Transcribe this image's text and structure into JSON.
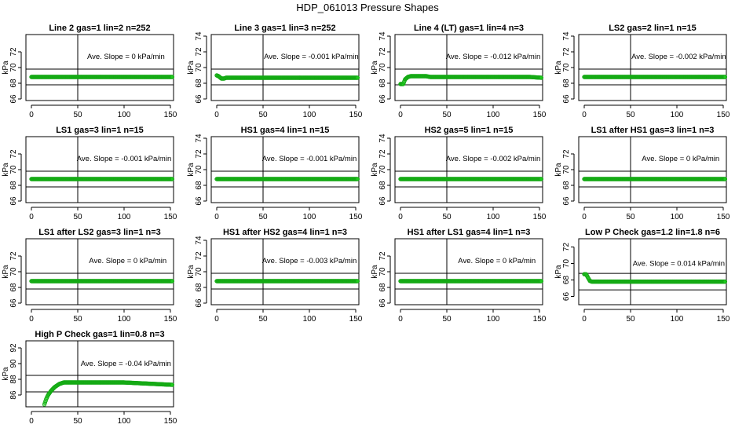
{
  "title": "HDP_061013  Pressure Shapes",
  "point_color": "#1fd01f",
  "point_stroke": "#14a814",
  "chart_data": [
    {
      "type": "scatter",
      "title": "Line 2 gas=1 lin=2 n=252",
      "ylabel": "kPa",
      "xlim": [
        0,
        152
      ],
      "ylim": [
        65.8,
        74.2
      ],
      "xticks": [
        0,
        50,
        100,
        150
      ],
      "yticks": [
        66,
        68,
        70,
        72
      ],
      "hlines": [
        69.8,
        67.8
      ],
      "vline": 50,
      "annotation": "Ave. Slope =  0  kPa/min",
      "ann_pos": [
        102,
        71.4
      ],
      "series": [
        [
          0,
          68.8
        ],
        [
          152,
          68.8
        ]
      ]
    },
    {
      "type": "scatter",
      "title": "Line 3 gas=1 lin=3 n=252",
      "ylabel": "kPa",
      "xlim": [
        0,
        152
      ],
      "ylim": [
        65.8,
        74.2
      ],
      "xticks": [
        0,
        50,
        100,
        150
      ],
      "yticks": [
        66,
        68,
        70,
        72,
        74
      ],
      "hlines": [
        69.8,
        67.8
      ],
      "vline": 50,
      "annotation": "Ave. Slope =  -0.001  kPa/min",
      "ann_pos": [
        102,
        71.4
      ],
      "series": [
        [
          0,
          69.0
        ],
        [
          2,
          68.9
        ],
        [
          5,
          68.6
        ],
        [
          8,
          68.6
        ],
        [
          10,
          68.7
        ],
        [
          152,
          68.7
        ]
      ]
    },
    {
      "type": "scatter",
      "title": "Line 4 (LT) gas=1 lin=4 n=3",
      "ylabel": "kPa",
      "xlim": [
        0,
        152
      ],
      "ylim": [
        65.8,
        74.2
      ],
      "xticks": [
        0,
        50,
        100,
        150
      ],
      "yticks": [
        66,
        68,
        70,
        72,
        74
      ],
      "hlines": [
        69.8,
        67.8
      ],
      "vline": 50,
      "annotation": "Ave. Slope =  -0.012  kPa/min",
      "ann_pos": [
        100,
        71.4
      ],
      "series": [
        [
          0,
          67.9
        ],
        [
          3,
          67.9
        ],
        [
          5,
          68.5
        ],
        [
          8,
          68.8
        ],
        [
          11,
          68.9
        ],
        [
          28,
          68.9
        ],
        [
          32,
          68.8
        ],
        [
          140,
          68.8
        ],
        [
          152,
          68.7
        ]
      ]
    },
    {
      "type": "scatter",
      "title": "LS2 gas=2 lin=1 n=15",
      "ylabel": "kPa",
      "xlim": [
        0,
        152
      ],
      "ylim": [
        65.8,
        74.2
      ],
      "xticks": [
        0,
        50,
        100,
        150
      ],
      "yticks": [
        66,
        68,
        70,
        72,
        74
      ],
      "hlines": [
        69.8,
        67.8
      ],
      "vline": 50,
      "annotation": "Ave. Slope =  -0.002  kPa/min",
      "ann_pos": [
        102,
        71.4
      ],
      "series": [
        [
          0,
          68.8
        ],
        [
          152,
          68.8
        ]
      ]
    },
    {
      "type": "scatter",
      "title": "LS1 gas=3 lin=1 n=15",
      "ylabel": "kPa",
      "xlim": [
        0,
        152
      ],
      "ylim": [
        65.8,
        74.2
      ],
      "xticks": [
        0,
        50,
        100,
        150
      ],
      "yticks": [
        66,
        68,
        70,
        72
      ],
      "hlines": [
        69.8,
        67.8
      ],
      "vline": 50,
      "annotation": "Ave. Slope =  -0.001  kPa/min",
      "ann_pos": [
        100,
        71.4
      ],
      "series": [
        [
          0,
          68.8
        ],
        [
          152,
          68.8
        ]
      ]
    },
    {
      "type": "scatter",
      "title": "HS1 gas=4 lin=1 n=15",
      "ylabel": "kPa",
      "xlim": [
        0,
        152
      ],
      "ylim": [
        65.8,
        74.2
      ],
      "xticks": [
        0,
        50,
        100,
        150
      ],
      "yticks": [
        66,
        68,
        70,
        72,
        74
      ],
      "hlines": [
        69.8,
        67.8
      ],
      "vline": 50,
      "annotation": "Ave. Slope =  -0.001  kPa/min",
      "ann_pos": [
        100,
        71.4
      ],
      "series": [
        [
          0,
          68.8
        ],
        [
          152,
          68.8
        ]
      ]
    },
    {
      "type": "scatter",
      "title": "HS2 gas=5 lin=1 n=15",
      "ylabel": "kPa",
      "xlim": [
        0,
        152
      ],
      "ylim": [
        65.8,
        74.2
      ],
      "xticks": [
        0,
        50,
        100,
        150
      ],
      "yticks": [
        66,
        68,
        70,
        72,
        74
      ],
      "hlines": [
        69.8,
        67.8
      ],
      "vline": 50,
      "annotation": "Ave. Slope =  -0.002  kPa/min",
      "ann_pos": [
        100,
        71.4
      ],
      "series": [
        [
          0,
          68.8
        ],
        [
          152,
          68.8
        ]
      ]
    },
    {
      "type": "scatter",
      "title": "LS1 after HS1 gas=3 lin=1 n=3",
      "ylabel": "kPa",
      "xlim": [
        0,
        152
      ],
      "ylim": [
        65.8,
        74.2
      ],
      "xticks": [
        0,
        50,
        100,
        150
      ],
      "yticks": [
        66,
        68,
        70,
        72
      ],
      "hlines": [
        69.8,
        67.8
      ],
      "vline": 50,
      "annotation": "Ave. Slope =  0  kPa/min",
      "ann_pos": [
        104,
        71.4
      ],
      "series": [
        [
          0,
          68.8
        ],
        [
          152,
          68.8
        ]
      ]
    },
    {
      "type": "scatter",
      "title": "LS1 after LS2 gas=3 lin=1 n=3",
      "ylabel": "kPa",
      "xlim": [
        0,
        152
      ],
      "ylim": [
        65.8,
        74.2
      ],
      "xticks": [
        0,
        50,
        100,
        150
      ],
      "yticks": [
        66,
        68,
        70,
        72
      ],
      "hlines": [
        69.8,
        67.8
      ],
      "vline": 50,
      "annotation": "Ave. Slope =  0  kPa/min",
      "ann_pos": [
        104,
        71.4
      ],
      "series": [
        [
          0,
          68.8
        ],
        [
          152,
          68.8
        ]
      ]
    },
    {
      "type": "scatter",
      "title": "HS1 after HS2 gas=4 lin=1 n=3",
      "ylabel": "kPa",
      "xlim": [
        0,
        152
      ],
      "ylim": [
        65.8,
        74.2
      ],
      "xticks": [
        0,
        50,
        100,
        150
      ],
      "yticks": [
        66,
        68,
        70,
        72,
        74
      ],
      "hlines": [
        69.8,
        67.8
      ],
      "vline": 50,
      "annotation": "Ave. Slope =  -0.003  kPa/min",
      "ann_pos": [
        100,
        71.4
      ],
      "series": [
        [
          0,
          68.8
        ],
        [
          152,
          68.8
        ]
      ]
    },
    {
      "type": "scatter",
      "title": "HS1 after LS1 gas=4 lin=1 n=3",
      "ylabel": "kPa",
      "xlim": [
        0,
        152
      ],
      "ylim": [
        65.8,
        74.2
      ],
      "xticks": [
        0,
        50,
        100,
        150
      ],
      "yticks": [
        66,
        68,
        70,
        72
      ],
      "hlines": [
        69.8,
        67.8
      ],
      "vline": 50,
      "annotation": "Ave. Slope =  0  kPa/min",
      "ann_pos": [
        104,
        71.4
      ],
      "series": [
        [
          0,
          68.8
        ],
        [
          152,
          68.8
        ]
      ]
    },
    {
      "type": "scatter",
      "title": "Low P Check gas=1.2 lin=1.8 n=6",
      "ylabel": "kPa",
      "xlim": [
        0,
        152
      ],
      "ylim": [
        65.0,
        73.0
      ],
      "xticks": [
        0,
        50,
        100,
        150
      ],
      "yticks": [
        66,
        68,
        70,
        72
      ],
      "hlines": [
        68.8,
        66.8
      ],
      "vline": 50,
      "annotation": "Ave. Slope =  0.014  kPa/min",
      "ann_pos": [
        102,
        70.0
      ],
      "series": [
        [
          0,
          68.7
        ],
        [
          2,
          68.7
        ],
        [
          4,
          68.3
        ],
        [
          6,
          67.9
        ],
        [
          8,
          67.8
        ],
        [
          152,
          67.8
        ]
      ]
    },
    {
      "type": "scatter",
      "title": "High P Check gas=1 lin=0.8 n=3",
      "ylabel": "kPa",
      "xlim": [
        0,
        152
      ],
      "ylim": [
        84.5,
        92.9
      ],
      "xticks": [
        0,
        50,
        100,
        150
      ],
      "yticks": [
        86,
        88,
        90,
        92
      ],
      "hlines": [
        88.5,
        86.4
      ],
      "vline": 50,
      "annotation": "Ave. Slope =  -0.04  kPa/min",
      "ann_pos": [
        102,
        90.0
      ],
      "series": [
        [
          14,
          84.8
        ],
        [
          16,
          85.5
        ],
        [
          18,
          86.0
        ],
        [
          21,
          86.5
        ],
        [
          25,
          87.0
        ],
        [
          30,
          87.4
        ],
        [
          35,
          87.6
        ],
        [
          100,
          87.6
        ],
        [
          152,
          87.3
        ]
      ]
    }
  ]
}
